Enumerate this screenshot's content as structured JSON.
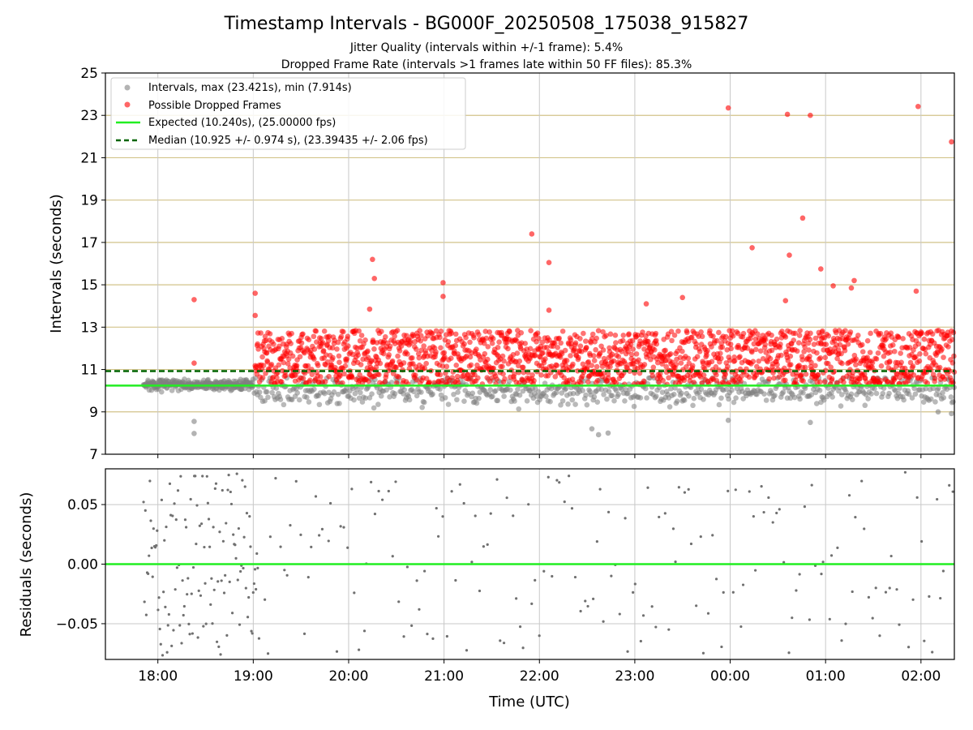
{
  "chart_data": [
    {
      "type": "scatter",
      "title": "Timestamp Intervals - BG000F_20250508_175038_915827",
      "subtitle_lines": [
        "Jitter Quality (intervals within +/-1 frame): 5.4%",
        "Dropped Frame Rate (intervals >1 frames late within 50 FF files): 85.3%"
      ],
      "xlabel": "",
      "ylabel": "Intervals (seconds)",
      "ylim": [
        7,
        25
      ],
      "yticks": [
        "7",
        "9",
        "11",
        "13",
        "15",
        "17",
        "19",
        "21",
        "23",
        "25"
      ],
      "xlim_hours": [
        17.45,
        26.35
      ],
      "xticks": [
        "18:00",
        "19:00",
        "20:00",
        "21:00",
        "22:00",
        "23:00",
        "00:00",
        "01:00",
        "02:00"
      ],
      "legend_position": "upper-left",
      "legend": [
        "Intervals, max (23.421s), min (7.914s)",
        "Possible Dropped Frames",
        "Expected (10.240s), (25.00000 fps)",
        "Median (10.925 +/- 0.974 s), (23.39435 +/- 2.06 fps)"
      ],
      "expected_line": 10.24,
      "median_line": 10.925,
      "colors": {
        "intervals": "#808080",
        "dropped": "#ff0000",
        "expected": "#22ee22",
        "median": "#006400",
        "grid_h": "#d2c38a",
        "grid_v": "#c8c8c8"
      },
      "series": [
        {
          "name": "Possible Dropped Frames",
          "points": [
            [
              18.38,
              14.3
            ],
            [
              18.38,
              11.3
            ],
            [
              19.02,
              14.6
            ],
            [
              19.02,
              13.55
            ],
            [
              20.22,
              13.85
            ],
            [
              20.25,
              16.2
            ],
            [
              20.27,
              15.3
            ],
            [
              20.99,
              15.1
            ],
            [
              20.99,
              14.45
            ],
            [
              21.92,
              17.4
            ],
            [
              22.1,
              16.05
            ],
            [
              22.1,
              13.8
            ],
            [
              23.12,
              14.1
            ],
            [
              23.5,
              14.4
            ],
            [
              23.98,
              23.35
            ],
            [
              24.23,
              16.75
            ],
            [
              24.6,
              23.05
            ],
            [
              24.62,
              16.4
            ],
            [
              24.58,
              14.25
            ],
            [
              24.76,
              18.15
            ],
            [
              24.84,
              23.0
            ],
            [
              24.95,
              15.75
            ],
            [
              25.08,
              14.95
            ],
            [
              25.27,
              14.85
            ],
            [
              25.3,
              15.2
            ],
            [
              25.95,
              14.7
            ],
            [
              25.97,
              23.42
            ],
            [
              26.32,
              21.75
            ]
          ]
        },
        {
          "name": "Intervals, max (23.421s), min (7.914s)",
          "points": [
            [
              18.38,
              8.55
            ],
            [
              18.38,
              7.98
            ],
            [
              22.55,
              8.2
            ],
            [
              22.62,
              7.92
            ],
            [
              22.72,
              8.0
            ],
            [
              23.98,
              8.6
            ],
            [
              24.84,
              8.5
            ],
            [
              26.32,
              8.92
            ],
            [
              26.18,
              9.0
            ]
          ]
        }
      ]
    },
    {
      "type": "scatter",
      "title": "",
      "xlabel": "Time (UTC)",
      "ylabel": "Residuals (seconds)",
      "ylim": [
        -0.08,
        0.08
      ],
      "yticks": [
        "−0.05",
        "0.00",
        "0.05"
      ],
      "xticks": [
        "18:00",
        "19:00",
        "20:00",
        "21:00",
        "22:00",
        "23:00",
        "00:00",
        "01:00",
        "02:00"
      ],
      "zero_line": 0.0,
      "colors": {
        "points": "#707070",
        "zero": "#22ee22"
      }
    }
  ]
}
